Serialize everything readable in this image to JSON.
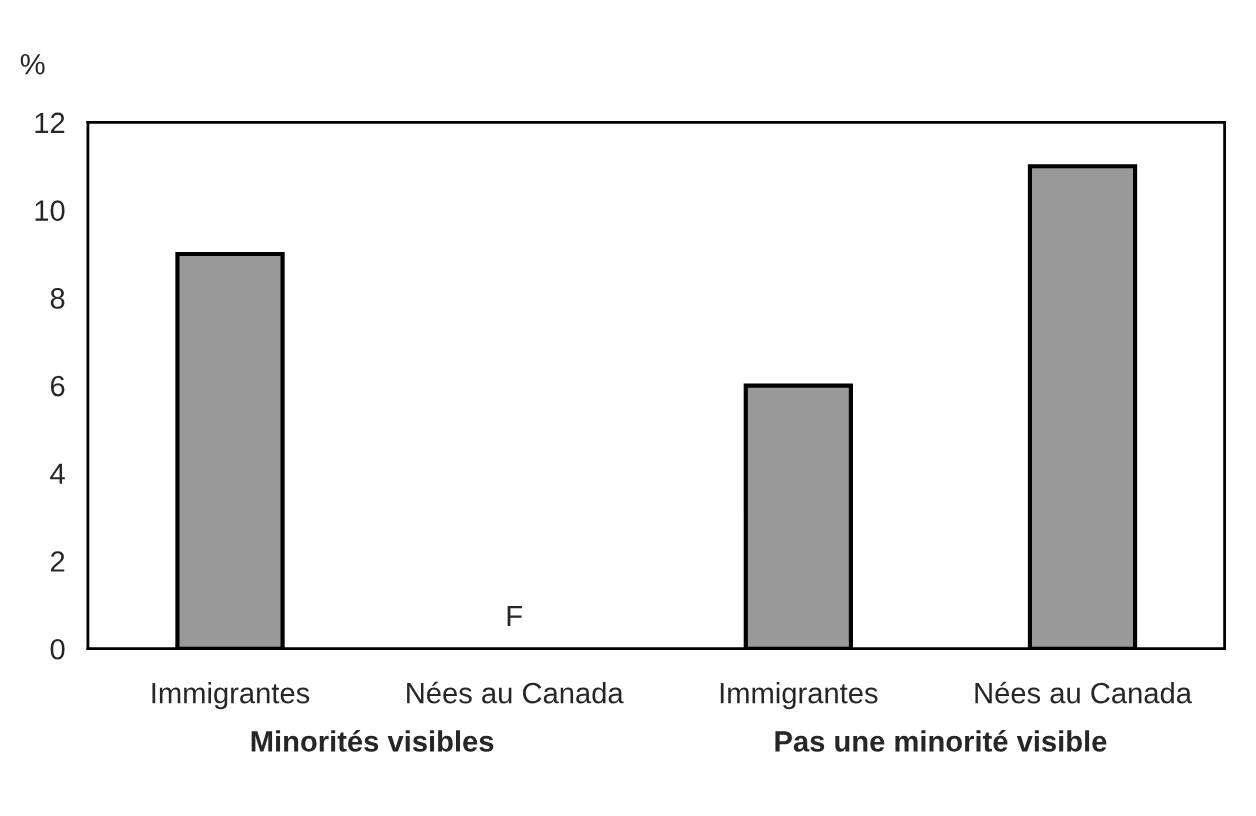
{
  "chart_data": {
    "type": "bar",
    "ylabel": "%",
    "categories": [
      "Immigrantes",
      "Nées au Canada",
      "Immigrantes",
      "Nées au Canada"
    ],
    "values": [
      9,
      null,
      6,
      11
    ],
    "value_labels": [
      null,
      "F",
      null,
      null
    ],
    "color": "#999999",
    "ylim": [
      0,
      12
    ],
    "yticks": [
      0,
      2,
      4,
      6,
      8,
      10,
      12
    ],
    "grid": false,
    "legend": false,
    "annotations": [
      "Minorités visibles",
      "Pas une minorité visible"
    ]
  }
}
